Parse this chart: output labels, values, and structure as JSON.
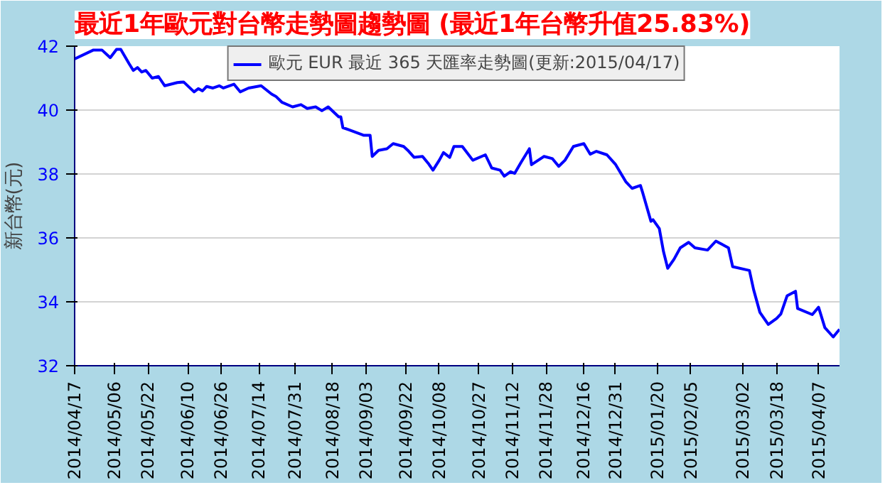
{
  "chart_data": {
    "type": "line",
    "title": "最近1年歐元對台幣走勢圖趨勢圖 (最近1年台幣升值25.83%)",
    "ylabel": "新台幣(元)",
    "x": [
      "2014-04-17",
      "2014-04-26",
      "2014-04-30",
      "2014-05-04",
      "2014-05-07",
      "2014-05-09",
      "2014-05-13",
      "2014-05-15",
      "2014-05-17",
      "2014-05-19",
      "2014-05-21",
      "2014-05-24",
      "2014-05-27",
      "2014-05-30",
      "2014-06-05",
      "2014-06-08",
      "2014-06-13",
      "2014-06-15",
      "2014-06-17",
      "2014-06-19",
      "2014-06-22",
      "2014-06-25",
      "2014-06-27",
      "2014-07-02",
      "2014-07-05",
      "2014-07-09",
      "2014-07-15",
      "2014-07-20",
      "2014-07-22",
      "2014-07-25",
      "2014-07-30",
      "2014-08-03",
      "2014-08-06",
      "2014-08-10",
      "2014-08-13",
      "2014-08-16",
      "2014-08-21",
      "2014-08-22",
      "2014-08-23",
      "2014-08-26",
      "2014-09-02",
      "2014-09-05",
      "2014-09-06",
      "2014-09-09",
      "2014-09-13",
      "2014-09-16",
      "2014-09-21",
      "2014-09-23",
      "2014-09-26",
      "2014-09-30",
      "2014-10-03",
      "2014-10-05",
      "2014-10-08",
      "2014-10-10",
      "2014-10-13",
      "2014-10-15",
      "2014-10-19",
      "2014-10-24",
      "2014-10-30",
      "2014-11-02",
      "2014-11-06",
      "2014-11-08",
      "2014-11-11",
      "2014-11-13",
      "2014-11-16",
      "2014-11-20",
      "2014-11-21",
      "2014-11-27",
      "2014-12-01",
      "2014-12-04",
      "2014-12-07",
      "2014-12-11",
      "2014-12-16",
      "2014-12-19",
      "2014-12-22",
      "2014-12-27",
      "2014-12-31",
      "2015-01-05",
      "2015-01-08",
      "2015-01-12",
      "2015-01-13",
      "2015-01-17",
      "2015-01-18",
      "2015-01-21",
      "2015-01-23",
      "2015-01-25",
      "2015-01-28",
      "2015-01-31",
      "2015-02-04",
      "2015-02-07",
      "2015-02-13",
      "2015-02-17",
      "2015-02-23",
      "2015-02-25",
      "2015-03-05",
      "2015-03-07",
      "2015-03-10",
      "2015-03-14",
      "2015-03-18",
      "2015-03-20",
      "2015-03-23",
      "2015-03-27",
      "2015-03-28",
      "2015-04-04",
      "2015-04-07",
      "2015-04-10",
      "2015-04-14",
      "2015-04-17"
    ],
    "series": [
      {
        "name": "歐元 EUR 最近 365 天匯率走勢圖(更新:2015/04/17)",
        "color": "#0000ff",
        "values": [
          41.6,
          41.88,
          41.88,
          41.64,
          41.9,
          41.9,
          41.45,
          41.24,
          41.33,
          41.19,
          41.24,
          41.0,
          41.05,
          40.76,
          40.86,
          40.88,
          40.57,
          40.67,
          40.6,
          40.74,
          40.69,
          40.76,
          40.69,
          40.81,
          40.57,
          40.69,
          40.76,
          40.5,
          40.43,
          40.24,
          40.1,
          40.17,
          40.05,
          40.1,
          39.98,
          40.1,
          39.79,
          39.79,
          39.45,
          39.38,
          39.21,
          39.21,
          38.55,
          38.74,
          38.79,
          38.95,
          38.86,
          38.74,
          38.52,
          38.55,
          38.31,
          38.12,
          38.43,
          38.67,
          38.52,
          38.86,
          38.86,
          38.43,
          38.6,
          38.19,
          38.12,
          37.93,
          38.07,
          38.02,
          38.36,
          38.79,
          38.29,
          38.55,
          38.48,
          38.24,
          38.43,
          38.86,
          38.95,
          38.62,
          38.71,
          38.6,
          38.31,
          37.76,
          37.55,
          37.64,
          37.43,
          36.52,
          36.57,
          36.29,
          35.57,
          35.05,
          35.33,
          35.69,
          35.86,
          35.69,
          35.62,
          35.9,
          35.69,
          35.1,
          34.98,
          34.38,
          33.67,
          33.29,
          33.48,
          33.62,
          34.19,
          34.33,
          33.79,
          33.6,
          33.83,
          33.19,
          32.9,
          33.14
        ]
      }
    ],
    "xlim": [
      "2014-04-17",
      "2015-04-17"
    ],
    "xticks": [
      {
        "value": "2014-04-17",
        "label": "2014/04/17"
      },
      {
        "value": "2014-05-06",
        "label": "2014/05/06"
      },
      {
        "value": "2014-05-22",
        "label": "2014/05/22"
      },
      {
        "value": "2014-06-10",
        "label": "2014/06/10"
      },
      {
        "value": "2014-06-26",
        "label": "2014/06/26"
      },
      {
        "value": "2014-07-14",
        "label": "2014/07/14"
      },
      {
        "value": "2014-07-31",
        "label": "2014/07/31"
      },
      {
        "value": "2014-08-18",
        "label": "2014/08/18"
      },
      {
        "value": "2014-09-03",
        "label": "2014/09/03"
      },
      {
        "value": "2014-09-22",
        "label": "2014/09/22"
      },
      {
        "value": "2014-10-08",
        "label": "2014/10/08"
      },
      {
        "value": "2014-10-27",
        "label": "2014/10/27"
      },
      {
        "value": "2014-11-12",
        "label": "2014/11/12"
      },
      {
        "value": "2014-11-28",
        "label": "2014/11/28"
      },
      {
        "value": "2014-12-16",
        "label": "2014/12/16"
      },
      {
        "value": "2014-12-31",
        "label": "2014/12/31"
      },
      {
        "value": "2015-01-20",
        "label": "2015/01/20"
      },
      {
        "value": "2015-02-05",
        "label": "2015/02/05"
      },
      {
        "value": "2015-03-02",
        "label": "2015/03/02"
      },
      {
        "value": "2015-03-18",
        "label": "2015/03/18"
      },
      {
        "value": "2015-04-07",
        "label": "2015/04/07"
      }
    ],
    "ylim": [
      32,
      42
    ],
    "yticks": [
      32,
      34,
      36,
      38,
      40,
      42
    ],
    "grid": "y",
    "legend": "top",
    "marker": "none",
    "line_style": "solid"
  }
}
